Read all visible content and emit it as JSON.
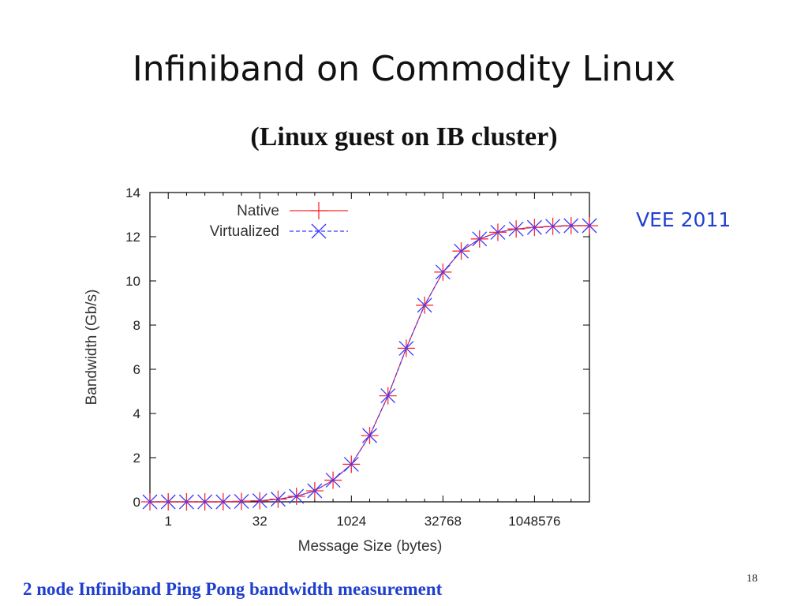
{
  "slide": {
    "title": "Infiniband on Commodity Linux",
    "subtitle": "(Linux guest on IB cluster)",
    "venue": "VEE 2011",
    "caption": "2 node Infiniband Ping Pong bandwidth measurement",
    "page_number": "18"
  },
  "colors": {
    "native": "#ff2a2a",
    "virtualized": "#3a3aff",
    "axis": "#000000",
    "title": "#111111",
    "accent_text": "#1f3fcf"
  },
  "chart_data": {
    "type": "line",
    "xlabel": "Message Size (bytes)",
    "ylabel": "Bandwidth (Gb/s)",
    "x_scale": "log2",
    "x_tick_labels": [
      "1",
      "32",
      "1024",
      "32768",
      "1048576"
    ],
    "x_tick_values": [
      1,
      32,
      1024,
      32768,
      1048576
    ],
    "xlim": [
      0.5,
      8388608
    ],
    "ylim": [
      0,
      14
    ],
    "y_ticks": [
      0,
      2,
      4,
      6,
      8,
      10,
      12,
      14
    ],
    "grid": false,
    "legend_position": "top-left",
    "x": [
      0.5,
      1,
      2,
      4,
      8,
      16,
      32,
      64,
      128,
      256,
      512,
      1024,
      2048,
      4096,
      8192,
      16384,
      32768,
      65536,
      131072,
      262144,
      524288,
      1048576,
      2097152,
      4194304,
      8388608
    ],
    "series": [
      {
        "name": "Native",
        "marker": "plus",
        "line": "solid",
        "values": [
          0.0,
          0.0,
          0.0,
          0.0,
          0.0,
          0.02,
          0.05,
          0.12,
          0.25,
          0.5,
          0.98,
          1.7,
          3.0,
          4.8,
          6.95,
          8.9,
          10.4,
          11.35,
          11.9,
          12.2,
          12.35,
          12.42,
          12.47,
          12.5,
          12.5
        ]
      },
      {
        "name": "Virtualized",
        "marker": "x",
        "line": "dashed",
        "values": [
          0.0,
          0.0,
          0.0,
          0.0,
          0.0,
          0.02,
          0.05,
          0.12,
          0.25,
          0.5,
          0.98,
          1.7,
          3.0,
          4.8,
          6.95,
          8.9,
          10.4,
          11.35,
          11.9,
          12.2,
          12.35,
          12.42,
          12.47,
          12.5,
          12.5
        ]
      }
    ]
  }
}
